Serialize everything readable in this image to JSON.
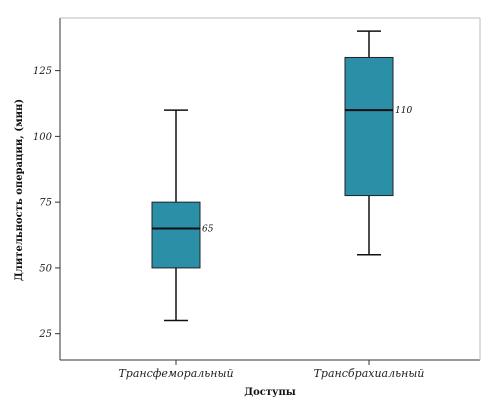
{
  "chart_data": {
    "type": "box",
    "xlabel": "Доступы",
    "ylabel": "Длительность операции, (мин)",
    "ylim": [
      15,
      145
    ],
    "yticks": [
      25,
      50,
      75,
      100,
      125
    ],
    "categories": [
      "Трансфеморальный",
      "Трансбрахиальный"
    ],
    "boxes": [
      {
        "category": "Трансфеморальный",
        "min": 30,
        "q1": 50,
        "median": 65,
        "q3": 75,
        "max": 110,
        "median_label": "65"
      },
      {
        "category": "Трансбрахиальный",
        "min": 55,
        "q1": 77.5,
        "median": 110,
        "q3": 130,
        "max": 140,
        "median_label": "110"
      }
    ],
    "box_color": "#2b8fa8",
    "grid": false
  }
}
